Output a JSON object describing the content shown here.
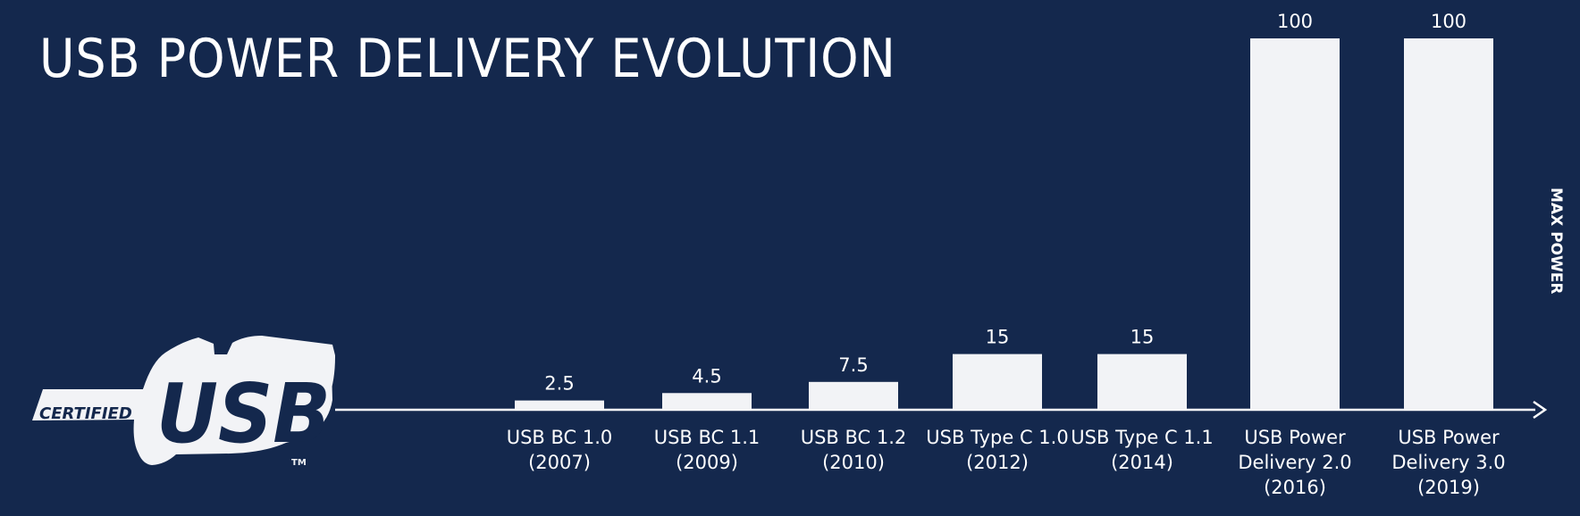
{
  "chart_data": {
    "type": "bar",
    "title": "USB POWER DELIVERY EVOLUTION",
    "ylabel": "MAX POWER",
    "categories": [
      [
        "USB BC 1.0",
        "(2007)"
      ],
      [
        "USB BC 1.1",
        "(2009)"
      ],
      [
        "USB BC 1.2",
        "(2010)"
      ],
      [
        "USB Type C 1.0",
        "(2012)"
      ],
      [
        "USB Type C 1.1",
        "(2014)"
      ],
      [
        "USB Power",
        "Delivery 2.0",
        "(2016)"
      ],
      [
        "USB Power",
        "Delivery 3.0",
        "(2019)"
      ]
    ],
    "values": [
      2.5,
      4.5,
      7.5,
      15,
      15,
      100,
      100
    ],
    "value_labels": [
      "2.5",
      "4.5",
      "7.5",
      "15",
      "15",
      "100",
      "100"
    ],
    "ylim": [
      0,
      100
    ],
    "grid": false,
    "colors": {
      "background": "#14284d",
      "bar": "#f2f3f6",
      "axis": "#ffffff"
    }
  },
  "logo": {
    "top": "CERTIFIED",
    "main": "USB",
    "mark": "TM"
  }
}
